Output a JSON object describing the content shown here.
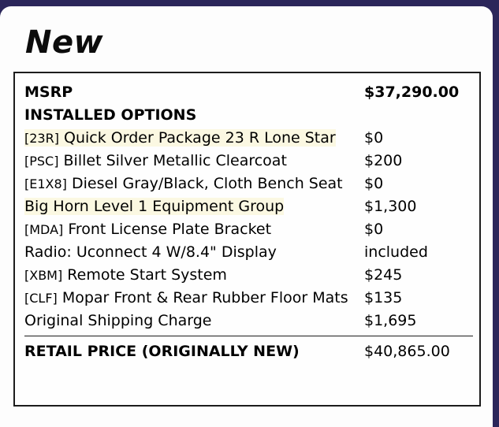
{
  "page": {
    "title": "New"
  },
  "colors": {
    "frame_navy": "#2b265a",
    "panel_background": "#fdfdfd",
    "table_border": "#1c1c1c",
    "highlight_yellow": "#fbf8e2",
    "text": "#000000"
  },
  "price_table": {
    "rows": [
      {
        "code": "",
        "label": "MSRP",
        "value": "$37,290.00",
        "bold": true,
        "bold_value": true,
        "highlight": false,
        "total": false
      },
      {
        "code": "",
        "label": "INSTALLED OPTIONS",
        "value": "",
        "bold": true,
        "bold_value": false,
        "highlight": false,
        "total": false
      },
      {
        "code": "[23R]",
        "label": "Quick Order Package 23 R Lone Star",
        "value": "$0",
        "bold": false,
        "bold_value": false,
        "highlight": true,
        "total": false
      },
      {
        "code": "[PSC]",
        "label": "Billet Silver Metallic Clearcoat",
        "value": "$200",
        "bold": false,
        "bold_value": false,
        "highlight": false,
        "total": false
      },
      {
        "code": "[E1X8]",
        "label": "Diesel Gray/Black, Cloth Bench Seat",
        "value": "$0",
        "bold": false,
        "bold_value": false,
        "highlight": false,
        "total": false
      },
      {
        "code": "",
        "label": "Big Horn Level 1 Equipment Group",
        "value": "$1,300",
        "bold": false,
        "bold_value": false,
        "highlight": true,
        "total": false
      },
      {
        "code": "[MDA]",
        "label": "Front License Plate Bracket",
        "value": "$0",
        "bold": false,
        "bold_value": false,
        "highlight": false,
        "total": false
      },
      {
        "code": "",
        "label": "Radio: Uconnect 4 W/8.4\" Display",
        "value": "included",
        "bold": false,
        "bold_value": false,
        "highlight": false,
        "total": false
      },
      {
        "code": "[XBM]",
        "label": "Remote Start System",
        "value": "$245",
        "bold": false,
        "bold_value": false,
        "highlight": false,
        "total": false
      },
      {
        "code": "[CLF]",
        "label": "Mopar Front & Rear Rubber Floor Mats",
        "value": "$135",
        "bold": false,
        "bold_value": false,
        "highlight": false,
        "total": false
      },
      {
        "code": "",
        "label": "Original Shipping Charge",
        "value": "$1,695",
        "bold": false,
        "bold_value": false,
        "highlight": false,
        "total": false
      },
      {
        "code": "",
        "label": "RETAIL PRICE (ORIGINALLY NEW)",
        "value": "$40,865.00",
        "bold": true,
        "bold_value": false,
        "highlight": false,
        "total": true
      }
    ]
  }
}
